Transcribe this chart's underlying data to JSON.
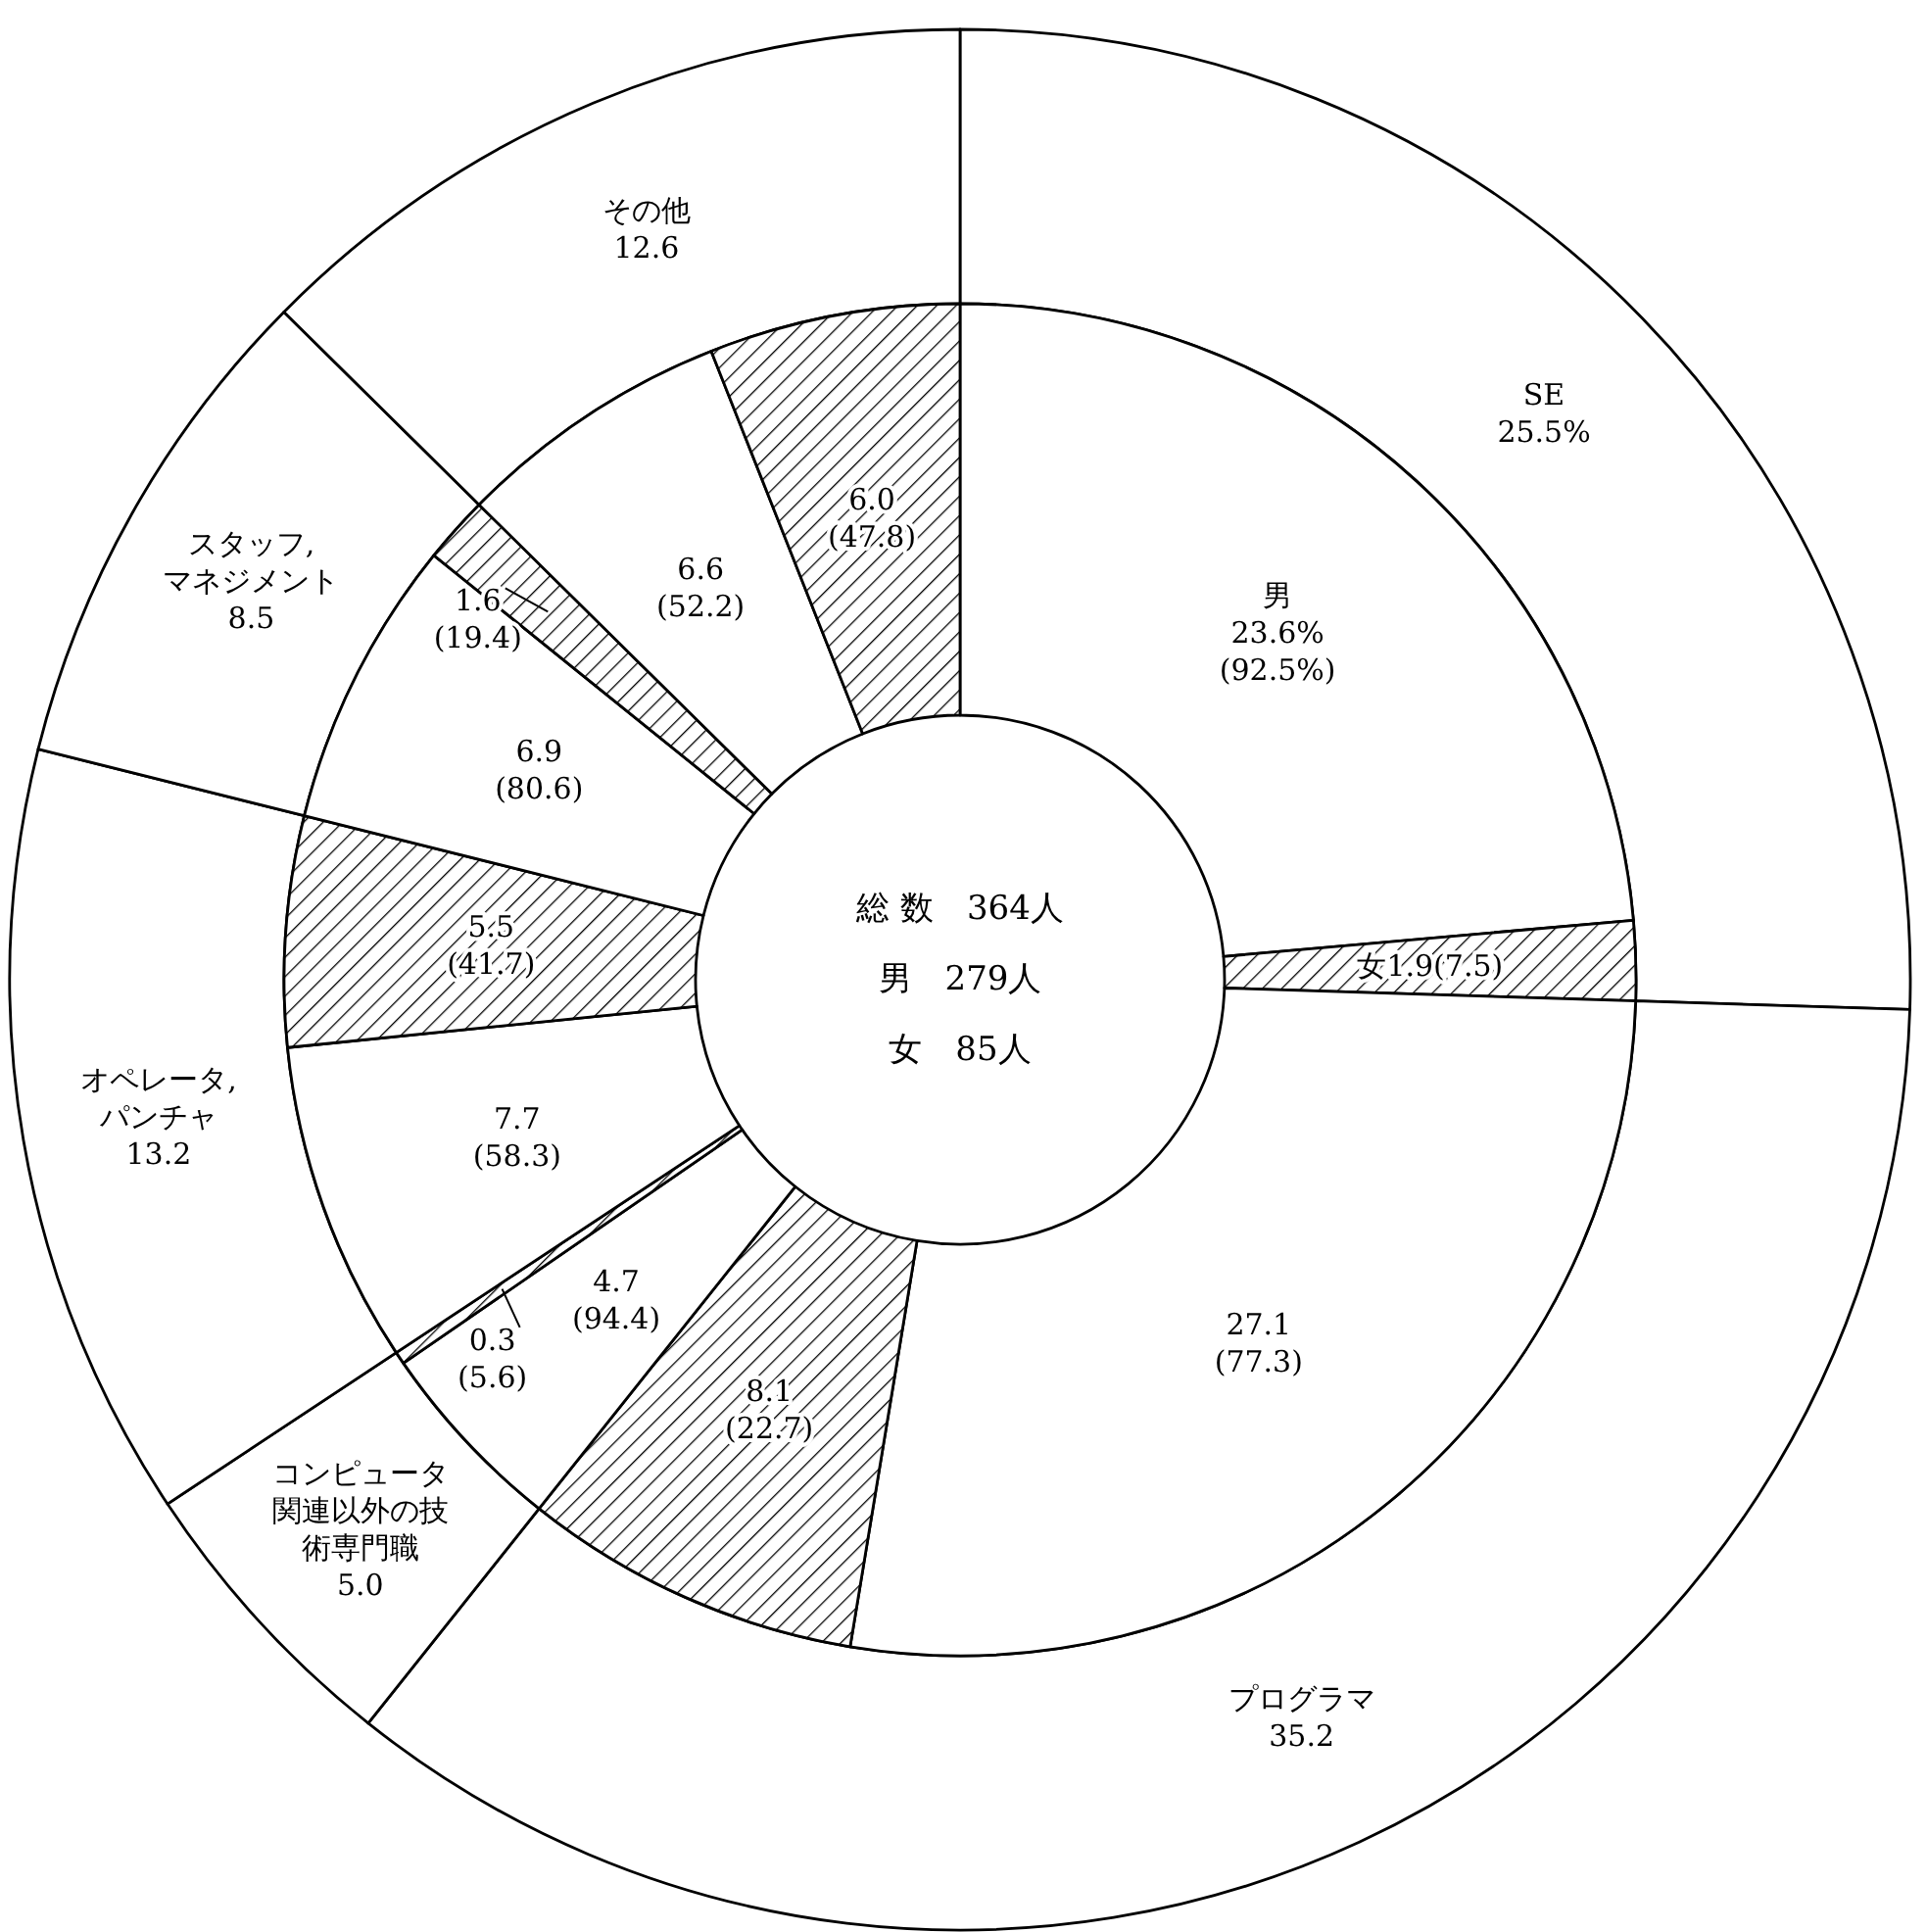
{
  "chart_data": [
    {
      "type": "donut",
      "categories": [
        "SE",
        "プログラマ",
        "コンピュータ関連以外の技術専門職",
        "オペレータ, パンチャ",
        "スタッフ, マネジメント",
        "その他"
      ],
      "values": [
        25.5,
        35.2,
        5.0,
        13.2,
        8.5,
        12.6
      ],
      "colors": [
        "#ffffff",
        "#ffffff",
        "#ffffff",
        "#ffffff",
        "#ffffff",
        "#ffffff"
      ],
      "value_labels": [
        "25.5%",
        "35.2",
        "5.0",
        "13.2",
        "8.5",
        "12.6"
      ]
    },
    {
      "type": "donut",
      "categories": [
        "男",
        "女",
        null,
        null,
        null,
        null,
        null,
        null,
        null,
        null,
        null,
        null
      ],
      "values": [
        23.6,
        1.9,
        27.1,
        8.1,
        4.7,
        0.3,
        7.7,
        5.5,
        6.9,
        1.6,
        6.6,
        6.0
      ],
      "colors": [
        "#ffffff",
        "#000000",
        "#ffffff",
        "#000000",
        "#ffffff",
        "#000000",
        "#ffffff",
        "#000000",
        "#ffffff",
        "#000000",
        "#ffffff",
        "#000000"
      ],
      "value_labels": [
        "23.6%\n(92.5%)",
        "1.9(7.5)",
        "27.1\n(77.3)",
        "8.1\n(22.7)",
        "4.7\n(94.4)",
        "0.3\n(5.6)",
        "7.7\n(58.3)",
        "5.5\n(41.7)",
        "6.9\n(80.6)",
        "1.6\n(19.4)",
        "6.6\n(52.2)",
        "6.0\n(47.8)"
      ],
      "annotations": [
        "総 数　364人",
        "男　279人",
        "女　85人"
      ]
    }
  ]
}
